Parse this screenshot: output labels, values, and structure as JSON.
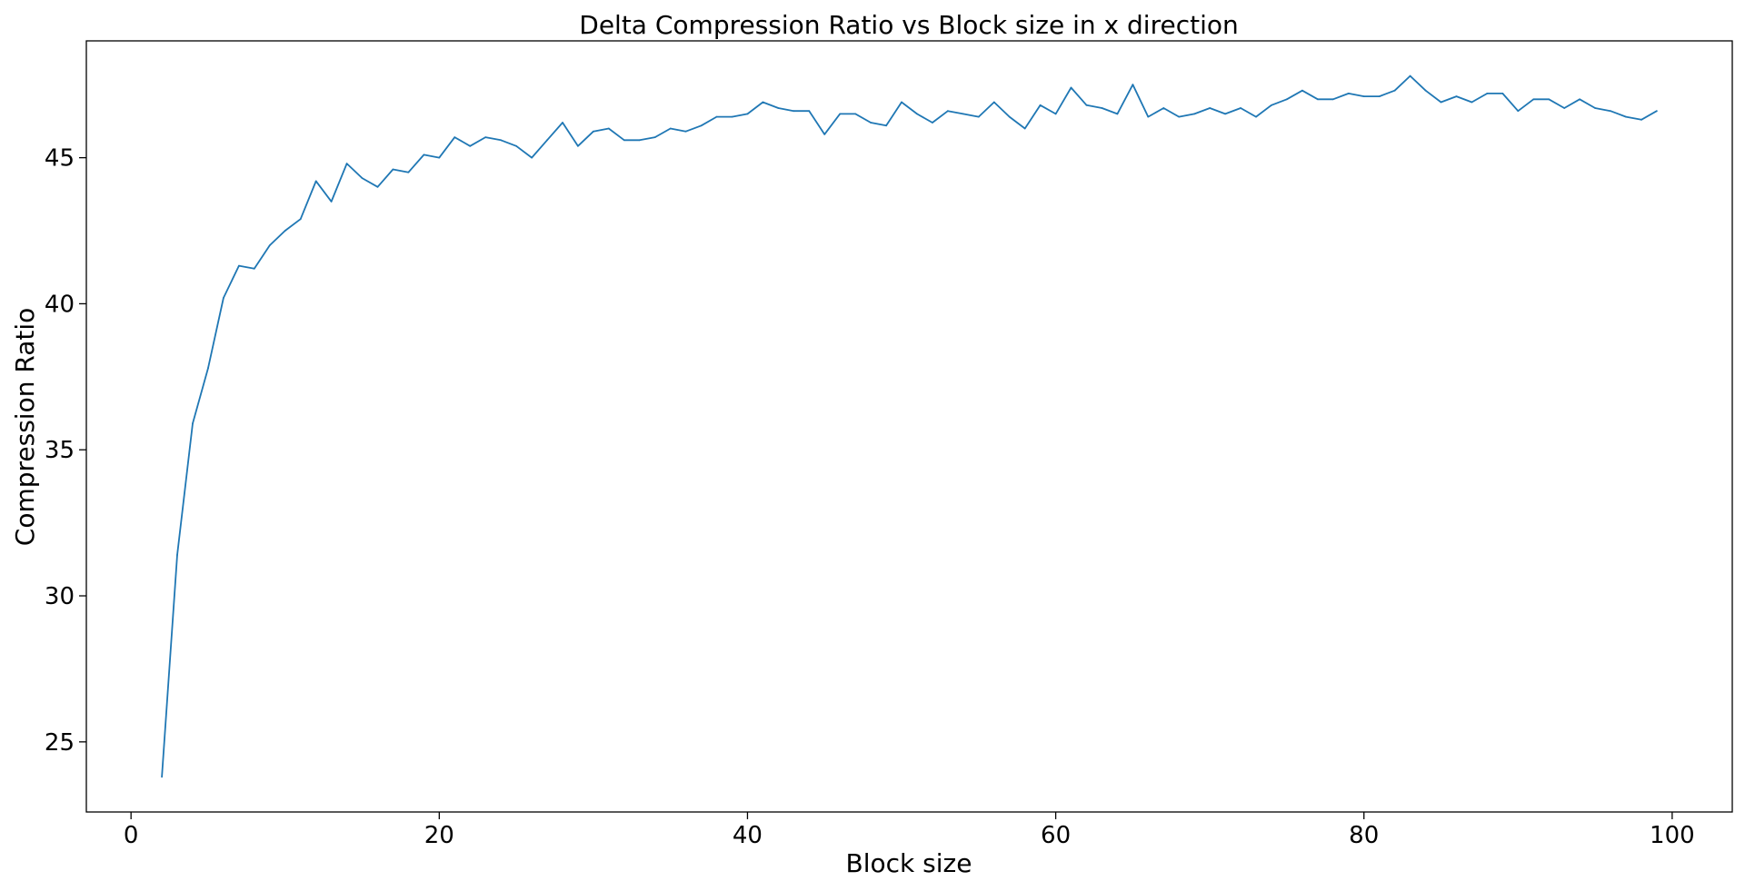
{
  "chart_data": {
    "type": "line",
    "title": "Delta Compression Ratio vs Block size in x direction",
    "xlabel": "Block size",
    "ylabel": "Compression Ratio",
    "xlim": [
      -2.9,
      103.9
    ],
    "ylim": [
      22.6,
      49.0
    ],
    "xticks": [
      0,
      20,
      40,
      60,
      80,
      100
    ],
    "yticks": [
      25,
      30,
      35,
      40,
      45
    ],
    "grid": false,
    "legend": "none",
    "line_color": "#1f77b4",
    "series": [
      {
        "x": [
          2,
          3,
          4,
          5,
          6,
          7,
          8,
          9,
          10,
          11,
          12,
          13,
          14,
          15,
          16,
          17,
          18,
          19,
          20,
          21,
          22,
          23,
          24,
          25,
          26,
          27,
          28,
          29,
          30,
          31,
          32,
          33,
          34,
          35,
          36,
          37,
          38,
          39,
          40,
          41,
          42,
          43,
          44,
          45,
          46,
          47,
          48,
          49,
          50,
          51,
          52,
          53,
          54,
          55,
          56,
          57,
          58,
          59,
          60,
          61,
          62,
          63,
          64,
          65,
          66,
          67,
          68,
          69,
          70,
          71,
          72,
          73,
          74,
          75,
          76,
          77,
          78,
          79,
          80,
          81,
          82,
          83,
          84,
          85,
          86,
          87,
          88,
          89,
          90,
          91,
          92,
          93,
          94,
          95,
          96,
          97,
          98,
          99
        ],
        "values": [
          23.8,
          31.4,
          35.9,
          37.8,
          40.2,
          41.3,
          41.2,
          42.0,
          42.5,
          42.9,
          44.2,
          43.5,
          44.8,
          44.3,
          44.0,
          44.6,
          44.5,
          45.1,
          45.0,
          45.7,
          45.4,
          45.7,
          45.6,
          45.4,
          45.0,
          45.6,
          46.2,
          45.4,
          45.9,
          46.0,
          45.6,
          45.6,
          45.7,
          46.0,
          45.9,
          46.1,
          46.4,
          46.4,
          46.5,
          46.9,
          46.7,
          46.6,
          46.6,
          45.8,
          46.5,
          46.5,
          46.2,
          46.1,
          46.9,
          46.5,
          46.2,
          46.6,
          46.5,
          46.4,
          46.9,
          46.4,
          46.0,
          46.8,
          46.5,
          47.4,
          46.8,
          46.7,
          46.5,
          47.5,
          46.4,
          46.7,
          46.4,
          46.5,
          46.7,
          46.5,
          46.7,
          46.4,
          46.8,
          47.0,
          47.3,
          47.0,
          47.0,
          47.2,
          47.1,
          47.1,
          47.3,
          47.8,
          47.3,
          46.9,
          47.1,
          46.9,
          47.2,
          47.2,
          46.6,
          47.0,
          47.0,
          46.7,
          47.0,
          46.7,
          46.6,
          46.4,
          46.3,
          46.6
        ]
      }
    ]
  }
}
